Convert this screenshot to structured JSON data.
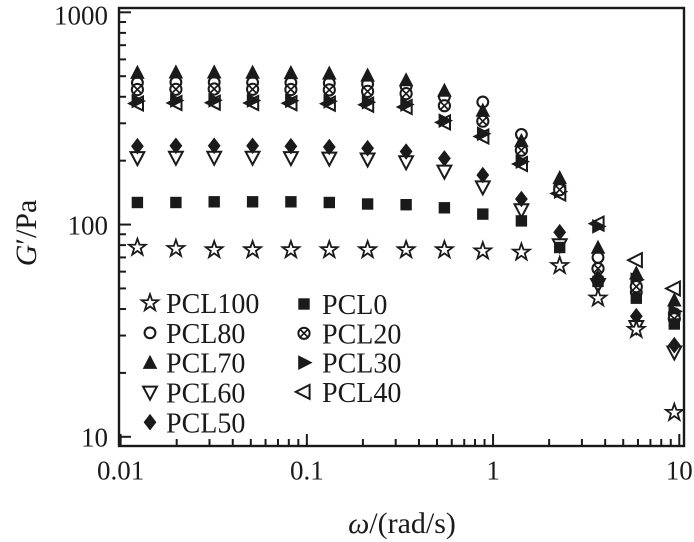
{
  "colors": {
    "ink": "#1a1a1a",
    "background": "#ffffff"
  },
  "chart_data": {
    "type": "scatter",
    "title": "",
    "xlabel": "ω/(rad/s)",
    "ylabel": "G′/Pa",
    "xlabel_parts": [
      {
        "text": "ω",
        "italic": true
      },
      {
        "text": "/(rad/s)",
        "italic": false
      }
    ],
    "ylabel_parts": [
      {
        "text": "G",
        "italic": true
      },
      {
        "text": "′/Pa",
        "italic": false
      }
    ],
    "x_scale": "log",
    "y_scale": "log",
    "xlim": [
      0.0098,
      10.6
    ],
    "ylim": [
      9.05,
      1048
    ],
    "grid": false,
    "x_ticks": [
      {
        "value": 0.01,
        "label": "0.01"
      },
      {
        "value": 0.1,
        "label": "0.1"
      },
      {
        "value": 1,
        "label": "1"
      },
      {
        "value": 10,
        "label": "10"
      }
    ],
    "y_ticks": [
      {
        "value": 10,
        "label": "10"
      },
      {
        "value": 100,
        "label": "100"
      },
      {
        "value": 1000,
        "label": "1000"
      }
    ],
    "x": [
      0.0123,
      0.0198,
      0.0318,
      0.0511,
      0.0821,
      0.132,
      0.212,
      0.341,
      0.548,
      0.881,
      1.42,
      2.28,
      3.66,
      5.88,
      9.4
    ],
    "series": [
      {
        "name": "PCL100",
        "marker": "open-star",
        "values": [
          78,
          77,
          76,
          76,
          76,
          76,
          76,
          76,
          76,
          75,
          74,
          64,
          45,
          32,
          13
        ]
      },
      {
        "name": "PCL80",
        "marker": "open-circle",
        "values": [
          466,
          468,
          468,
          467,
          466,
          464,
          459,
          448,
          400,
          378,
          266,
          150,
          70,
          48,
          38
        ]
      },
      {
        "name": "PCL70",
        "marker": "filled-triangle-up",
        "values": [
          520,
          522,
          522,
          521,
          519,
          516,
          505,
          480,
          428,
          345,
          248,
          166,
          78,
          59,
          44
        ]
      },
      {
        "name": "PCL60",
        "marker": "open-triangle-down",
        "values": [
          206,
          207,
          207,
          207,
          206,
          205,
          203,
          197,
          178,
          150,
          117,
          80,
          52,
          33,
          25
        ]
      },
      {
        "name": "PCL50",
        "marker": "filled-diamond",
        "values": [
          234,
          235,
          235,
          235,
          234,
          232,
          229,
          221,
          205,
          171,
          132,
          92,
          56,
          37,
          27
        ]
      },
      {
        "name": "PCL0",
        "marker": "filled-square",
        "values": [
          127,
          127,
          128,
          128,
          128,
          127,
          125,
          124,
          120,
          112,
          104,
          78,
          54,
          45,
          34
        ]
      },
      {
        "name": "PCL20",
        "marker": "circle-x",
        "values": [
          433,
          434,
          435,
          434,
          433,
          431,
          424,
          414,
          363,
          307,
          224,
          146,
          62,
          51,
          36
        ]
      },
      {
        "name": "PCL30",
        "marker": "filled-triangle-right",
        "values": [
          382,
          384,
          385,
          384,
          383,
          381,
          377,
          368,
          309,
          268,
          198,
          143,
          98,
          55,
          39
        ]
      },
      {
        "name": "PCL40",
        "marker": "open-triangle-left",
        "values": [
          372,
          374,
          375,
          374,
          373,
          371,
          367,
          358,
          303,
          260,
          193,
          140,
          101,
          68,
          50
        ]
      }
    ],
    "draw_order": [
      "PCL80",
      "PCL40",
      "PCL30",
      "PCL20",
      "PCL70",
      "PCL60",
      "PCL50",
      "PCL0",
      "PCL100"
    ],
    "legend": {
      "position": "lower-left-inside",
      "columns": [
        {
          "items": [
            {
              "marker": "open-star",
              "label": "PCL100"
            },
            {
              "marker": "open-circle",
              "label": "PCL80"
            },
            {
              "marker": "filled-triangle-up",
              "label": "PCL70"
            },
            {
              "marker": "open-triangle-down",
              "label": "PCL60"
            },
            {
              "marker": "filled-diamond",
              "label": "PCL50"
            }
          ]
        },
        {
          "items": [
            {
              "marker": "filled-square",
              "label": "PCL0"
            },
            {
              "marker": "circle-x",
              "label": "PCL20"
            },
            {
              "marker": "filled-triangle-right",
              "label": "PCL30"
            },
            {
              "marker": "open-triangle-left",
              "label": "PCL40"
            }
          ]
        }
      ]
    }
  }
}
